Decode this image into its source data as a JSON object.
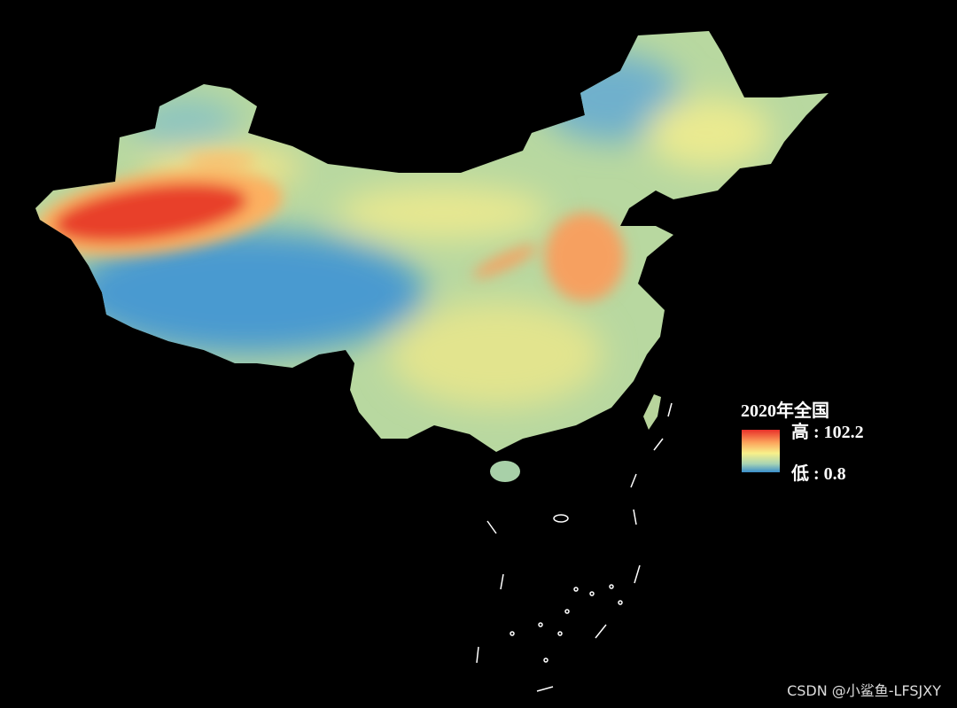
{
  "legend": {
    "title": "2020年全国",
    "max_label": "高 : 102.2",
    "min_label": "低 : 0.8"
  },
  "watermark": "CSDN @小鲨鱼-LFSJXY"
}
